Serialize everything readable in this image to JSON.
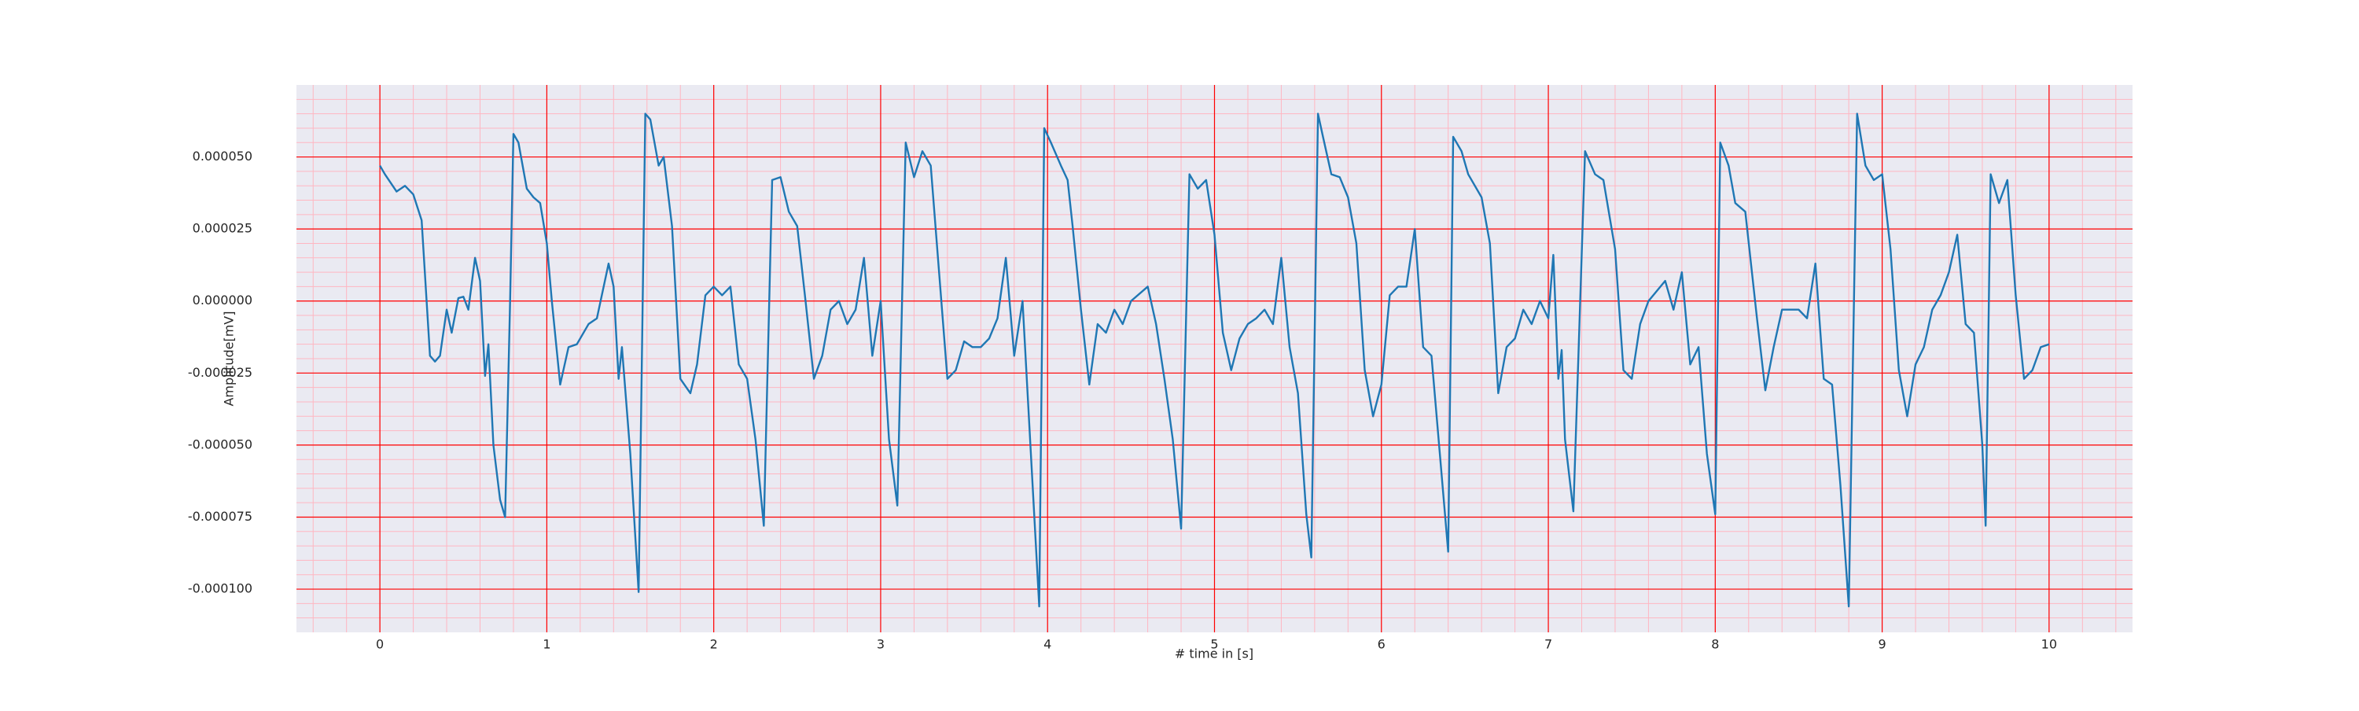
{
  "chart_data": {
    "type": "line",
    "xlabel": "# time in [s]",
    "ylabel": "Amplitude[mV]",
    "x": [
      0,
      0.03,
      0.1,
      0.15,
      0.2,
      0.25,
      0.3,
      0.33,
      0.36,
      0.4,
      0.43,
      0.47,
      0.5,
      0.53,
      0.57,
      0.6,
      0.63,
      0.65,
      0.68,
      0.72,
      0.75,
      0.78,
      0.8,
      0.83,
      0.88,
      0.92,
      0.96,
      1.0,
      1.03,
      1.08,
      1.13,
      1.18,
      1.25,
      1.3,
      1.37,
      1.4,
      1.43,
      1.45,
      1.5,
      1.55,
      1.59,
      1.62,
      1.67,
      1.7,
      1.75,
      1.8,
      1.86,
      1.9,
      1.95,
      2.0,
      2.05,
      2.1,
      2.15,
      2.2,
      2.25,
      2.3,
      2.35,
      2.4,
      2.45,
      2.5,
      2.55,
      2.6,
      2.65,
      2.7,
      2.75,
      2.8,
      2.85,
      2.9,
      2.95,
      3.0,
      3.05,
      3.1,
      3.15,
      3.2,
      3.25,
      3.3,
      3.4,
      3.45,
      3.5,
      3.55,
      3.6,
      3.65,
      3.7,
      3.75,
      3.8,
      3.85,
      3.9,
      3.95,
      3.98,
      4.02,
      4.08,
      4.12,
      4.15,
      4.2,
      4.25,
      4.3,
      4.35,
      4.4,
      4.45,
      4.5,
      4.6,
      4.65,
      4.7,
      4.75,
      4.8,
      4.85,
      4.9,
      4.95,
      5.0,
      5.05,
      5.1,
      5.15,
      5.2,
      5.25,
      5.3,
      5.35,
      5.4,
      5.45,
      5.5,
      5.55,
      5.58,
      5.62,
      5.65,
      5.7,
      5.75,
      5.8,
      5.85,
      5.9,
      5.95,
      6.0,
      6.05,
      6.1,
      6.15,
      6.2,
      6.25,
      6.3,
      6.35,
      6.4,
      6.43,
      6.48,
      6.52,
      6.6,
      6.65,
      6.7,
      6.75,
      6.8,
      6.85,
      6.9,
      6.95,
      7.0,
      7.03,
      7.06,
      7.08,
      7.1,
      7.15,
      7.22,
      7.28,
      7.33,
      7.4,
      7.45,
      7.5,
      7.55,
      7.6,
      7.7,
      7.75,
      7.8,
      7.85,
      7.9,
      7.95,
      8.0,
      8.03,
      8.08,
      8.12,
      8.18,
      8.25,
      8.3,
      8.35,
      8.4,
      8.45,
      8.5,
      8.55,
      8.6,
      8.65,
      8.7,
      8.75,
      8.8,
      8.85,
      8.9,
      8.95,
      9.0,
      9.05,
      9.1,
      9.15,
      9.2,
      9.25,
      9.3,
      9.35,
      9.4,
      9.45,
      9.5,
      9.55,
      9.6,
      9.62,
      9.65,
      9.7,
      9.75,
      9.8,
      9.85,
      9.9,
      9.95,
      10.0
    ],
    "values": [
      4.7e-05,
      4.4e-05,
      3.8e-05,
      4e-05,
      3.7e-05,
      2.8e-05,
      -1.9e-05,
      -2.1e-05,
      -1.9e-05,
      -3e-06,
      -1.1e-05,
      1e-06,
      1.5e-06,
      -3e-06,
      1.5e-05,
      7e-06,
      -2.6e-05,
      -1.5e-05,
      -5e-05,
      -6.9e-05,
      -7.5e-05,
      0,
      5.8e-05,
      5.5e-05,
      3.9e-05,
      3.6e-05,
      3.4e-05,
      2e-05,
      0,
      -2.9e-05,
      -1.6e-05,
      -1.5e-05,
      -8e-06,
      -6e-06,
      1.3e-05,
      5e-06,
      -2.7e-05,
      -1.6e-05,
      -5.3e-05,
      -0.000101,
      6.5e-05,
      6.3e-05,
      4.7e-05,
      5e-05,
      2.6e-05,
      -2.7e-05,
      -3.2e-05,
      -2.2e-05,
      2e-06,
      5e-06,
      2e-06,
      5e-06,
      -2.2e-05,
      -2.7e-05,
      -4.8e-05,
      -7.8e-05,
      4.2e-05,
      4.3e-05,
      3.1e-05,
      2.6e-05,
      0,
      -2.7e-05,
      -1.9e-05,
      -3e-06,
      0,
      -8e-06,
      -3e-06,
      1.5e-05,
      -1.9e-05,
      0,
      -4.8e-05,
      -7.1e-05,
      5.5e-05,
      4.3e-05,
      5.2e-05,
      4.7e-05,
      -2.7e-05,
      -2.4e-05,
      -1.4e-05,
      -1.6e-05,
      -1.6e-05,
      -1.3e-05,
      -6e-06,
      1.5e-05,
      -1.9e-05,
      0,
      -5.3e-05,
      -0.000106,
      6e-05,
      5.5e-05,
      4.7e-05,
      4.2e-05,
      2.6e-05,
      -3e-06,
      -2.9e-05,
      -8e-06,
      -1.1e-05,
      -3e-06,
      -8e-06,
      0,
      5e-06,
      -8e-06,
      -2.7e-05,
      -4.8e-05,
      -7.9e-05,
      4.4e-05,
      3.9e-05,
      4.2e-05,
      2.3e-05,
      -1.1e-05,
      -2.4e-05,
      -1.3e-05,
      -8e-06,
      -6e-06,
      -3e-06,
      -8e-06,
      1.5e-05,
      -1.6e-05,
      -3.2e-05,
      -7.4e-05,
      -8.9e-05,
      6.5e-05,
      5.7e-05,
      4.4e-05,
      4.3e-05,
      3.6e-05,
      2e-05,
      -2.4e-05,
      -4e-05,
      -2.9e-05,
      2e-06,
      5e-06,
      5e-06,
      2.5e-05,
      -1.6e-05,
      -1.9e-05,
      -5.3e-05,
      -8.7e-05,
      5.7e-05,
      5.2e-05,
      4.4e-05,
      3.6e-05,
      2e-05,
      -3.2e-05,
      -1.6e-05,
      -1.3e-05,
      -3e-06,
      -8e-06,
      0,
      -6e-06,
      1.6e-05,
      -2.7e-05,
      -1.7e-05,
      -4.8e-05,
      -7.3e-05,
      5.2e-05,
      4.4e-05,
      4.2e-05,
      1.8e-05,
      -2.4e-05,
      -2.7e-05,
      -8e-06,
      0,
      7e-06,
      -3e-06,
      1e-05,
      -2.2e-05,
      -1.6e-05,
      -5.3e-05,
      -7.4e-05,
      5.5e-05,
      4.7e-05,
      3.4e-05,
      3.1e-05,
      -6e-06,
      -3.1e-05,
      -1.6e-05,
      -3e-06,
      -3e-06,
      -3e-06,
      -6e-06,
      1.3e-05,
      -2.7e-05,
      -2.9e-05,
      -6.4e-05,
      -0.000106,
      6.5e-05,
      4.7e-05,
      4.2e-05,
      4.4e-05,
      1.8e-05,
      -2.4e-05,
      -4e-05,
      -2.2e-05,
      -1.6e-05,
      -3e-06,
      2e-06,
      1e-05,
      2.3e-05,
      -8e-06,
      -1.1e-05,
      -5e-05,
      -7.8e-05,
      4.4e-05,
      3.4e-05,
      4.2e-05,
      2e-06,
      -2.7e-05,
      -2.4e-05,
      -1.6e-05,
      -1.5e-05
    ],
    "color": "#1f77b4",
    "xlim": [
      -0.5,
      10.5
    ],
    "xticks": [
      0,
      1,
      2,
      3,
      4,
      5,
      6,
      7,
      8,
      9,
      10
    ],
    "ylim": [
      -0.000115,
      7.5e-05
    ],
    "yticks": [
      {
        "value": -0.0001,
        "label": "-0.000100"
      },
      {
        "value": -7.5e-05,
        "label": "-0.000075"
      },
      {
        "value": -5e-05,
        "label": "-0.000050"
      },
      {
        "value": -2.5e-05,
        "label": "-0.000025"
      },
      {
        "value": 0,
        "label": "0.000000"
      },
      {
        "value": 2.5e-05,
        "label": "0.000025"
      },
      {
        "value": 5e-05,
        "label": "0.000050"
      }
    ],
    "grid": true,
    "grid_color": "#ff0000",
    "minor_grid": true,
    "minor_grid_color": "#ffb6c1",
    "background": "#eaeaf2"
  }
}
